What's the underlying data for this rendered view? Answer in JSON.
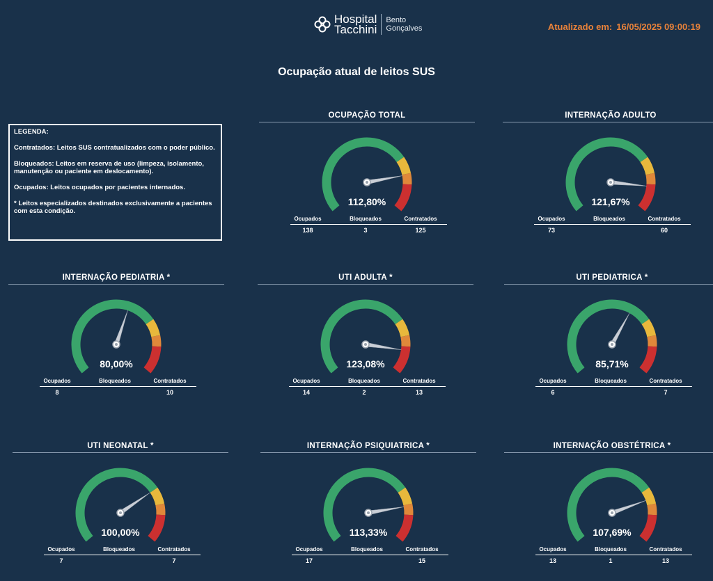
{
  "header": {
    "logo_line1": "Hospital",
    "logo_line2": "Tacchini",
    "city_line1": "Bento",
    "city_line2": "Gonçalves",
    "updated_label": "Atualizado em:",
    "updated_value": "16/05/2025 09:00:19"
  },
  "title": "Ocupação atual de leitos SUS",
  "legend": {
    "title": "LEGENDA:",
    "contratados": "Contratados: Leitos SUS contratualizados com o poder público.",
    "bloqueados": "Bloqueados: Leitos em reserva de uso (limpeza, isolamento, manutenção ou paciente em deslocamento).",
    "ocupados": "Ocupados: Leitos ocupados por pacientes internados.",
    "especiais": "* Leitos especializados destinados exclusivamente a pacientes com esta condição."
  },
  "labels": {
    "ocupados": "Ocupados",
    "bloqueados": "Bloqueados",
    "contratados": "Contratados"
  },
  "colors": {
    "green": "#3aa56b",
    "yellow": "#e8b83c",
    "orange": "#e0883a",
    "red": "#cc3030",
    "background": "#19314a",
    "accent": "#e8823a"
  },
  "gauges": [
    {
      "title": "OCUPAÇÃO TOTAL",
      "percent": "112,80%",
      "value": 112.8,
      "ocupados": "138",
      "bloqueados": "3",
      "contratados": "125"
    },
    {
      "title": "INTERNAÇÃO ADULTO",
      "percent": "121,67%",
      "value": 121.67,
      "ocupados": "73",
      "bloqueados": "",
      "contratados": "60"
    },
    {
      "title": "INTERNAÇÃO PEDIATRIA *",
      "percent": "80,00%",
      "value": 80.0,
      "ocupados": "8",
      "bloqueados": "",
      "contratados": "10"
    },
    {
      "title": "UTI ADULTA *",
      "percent": "123,08%",
      "value": 123.08,
      "ocupados": "14",
      "bloqueados": "2",
      "contratados": "13"
    },
    {
      "title": "UTI PEDIATRICA *",
      "percent": "85,71%",
      "value": 85.71,
      "ocupados": "6",
      "bloqueados": "",
      "contratados": "7"
    },
    {
      "title": "UTI NEONATAL *",
      "percent": "100,00%",
      "value": 100.0,
      "ocupados": "7",
      "bloqueados": "",
      "contratados": "7"
    },
    {
      "title": "INTERNAÇÃO PSIQUIATRICA *",
      "percent": "113,33%",
      "value": 113.33,
      "ocupados": "17",
      "bloqueados": "",
      "contratados": "15"
    },
    {
      "title": "INTERNAÇÃO OBSTÉTRICA *",
      "percent": "107,69%",
      "value": 107.69,
      "ocupados": "13",
      "bloqueados": "1",
      "contratados": "13"
    }
  ]
}
